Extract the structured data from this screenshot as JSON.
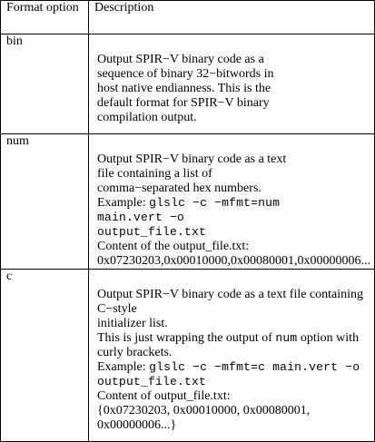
{
  "header": {
    "col_option": "Format option",
    "col_description": "Description"
  },
  "rows": [
    {
      "option": "bin",
      "lines": [
        {
          "text": "Output SPIR−V binary code as a"
        },
        {
          "text": "sequence of binary 32−bitwords in"
        },
        {
          "text": "host native endianness. This is the"
        },
        {
          "text": "default format for SPIR−V binary"
        },
        {
          "text": "compilation output."
        }
      ]
    },
    {
      "option": "num",
      "lines": [
        {
          "text": "Output SPIR−V binary code as a text"
        },
        {
          "text": "file containing a list of"
        },
        {
          "text": "comma−separated hex numbers."
        },
        {
          "prefix": "Example: ",
          "code": "glslc −c −mfmt=num"
        },
        {
          "code": "main.vert −o"
        },
        {
          "code": "output_file.txt"
        },
        {
          "text": "Content of the output_file.txt:"
        },
        {
          "text": "0x07230203,0x00010000,0x00080001,0x00000006..."
        }
      ]
    },
    {
      "option": "c",
      "lines": [
        {
          "text": "Output SPIR−V binary code as a text file containing"
        },
        {
          "text": "C−style"
        },
        {
          "text": "initializer list."
        },
        {
          "prefix": "This is just wrapping the output of ",
          "code": "num",
          "suffix": " option with"
        },
        {
          "text": "curly brackets."
        },
        {
          "prefix": "Example: ",
          "code": "glslc −c −mfmt=c main.vert −o"
        },
        {
          "code": "output_file.txt"
        },
        {
          "text": "Content of output_file.txt:"
        },
        {
          "text": "{0x07230203, 0x00010000, 0x00080001,"
        },
        {
          "text": "0x00000006...}"
        }
      ]
    }
  ]
}
